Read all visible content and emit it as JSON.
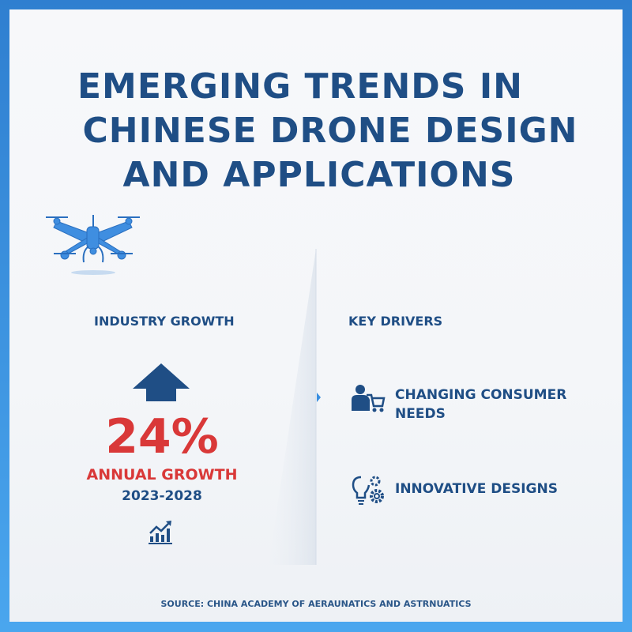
{
  "title": {
    "line1": "EMERGING TRENDS IN",
    "line2": "CHINESE DRONE DESIGN",
    "line3": "AND APPLICATIONS"
  },
  "left": {
    "heading": "INDUSTRY GROWTH",
    "value": "24%",
    "label": "ANNUAL GROWTH",
    "period": "2023-2028"
  },
  "right": {
    "heading": "KEY DRIVERS",
    "items": [
      {
        "label": "CHANGING CONSUMER NEEDS",
        "icon": "person-cart-icon"
      },
      {
        "label": "INNOVATIVE DESIGNS",
        "icon": "lightbulb-gears-icon"
      }
    ]
  },
  "source": "SOURCE: CHINA ACADEMY OF AERAUNATICS AND ASTRNUATICS",
  "colors": {
    "primary": "#1f4e85",
    "accent": "#d93838",
    "drone": "#3f8ee0",
    "frame": "#3a92e0"
  }
}
